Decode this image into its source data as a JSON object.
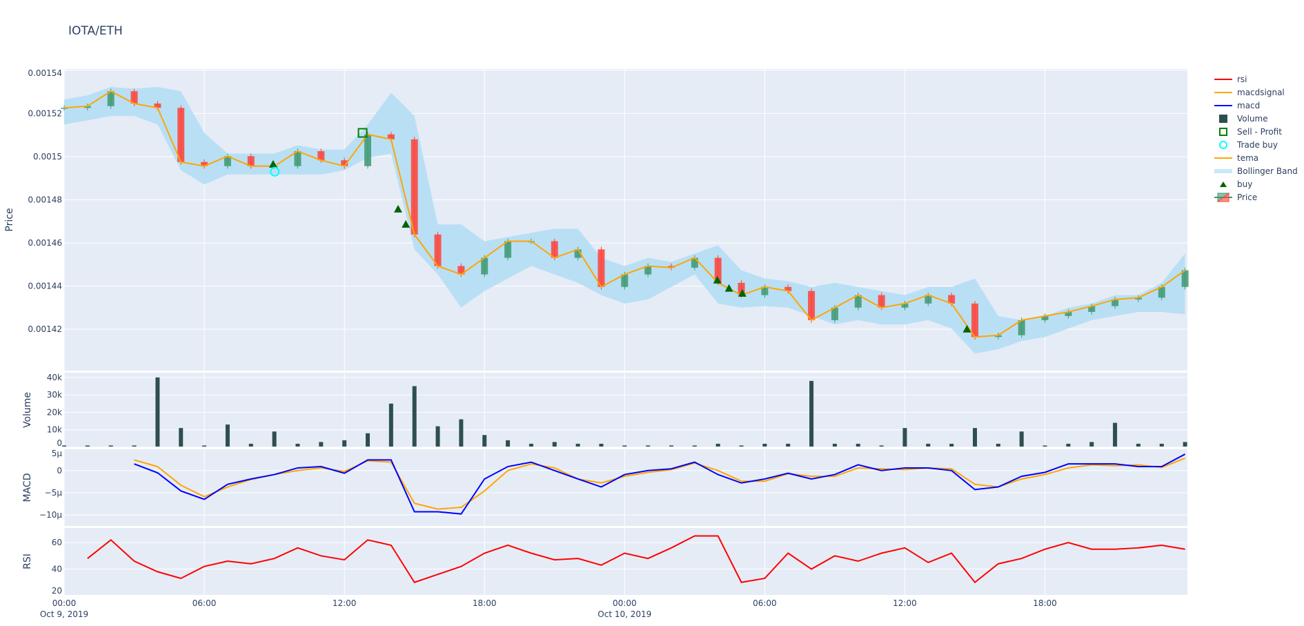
{
  "chart_data": {
    "type": "candlestick",
    "title": "IOTA/ETH",
    "time_unit_note_hidden": null,
    "x_hours_from_start": [
      0,
      1,
      2,
      3,
      4,
      5,
      6,
      7,
      8,
      9,
      10,
      11,
      12,
      13,
      14,
      15,
      16,
      17,
      18,
      19,
      20,
      21,
      22,
      23,
      24,
      25,
      26,
      27,
      28,
      29,
      30,
      31,
      32,
      33,
      34,
      35,
      36,
      37,
      38,
      39,
      40,
      41,
      42,
      43,
      44,
      45,
      46,
      47,
      48
    ],
    "x_start": "Oct 9, 2019 00:00",
    "xaxis": {
      "ticks": [
        {
          "h": 0,
          "label": "00:00",
          "sub": "Oct 9, 2019"
        },
        {
          "h": 6,
          "label": "06:00",
          "sub": ""
        },
        {
          "h": 12,
          "label": "12:00",
          "sub": ""
        },
        {
          "h": 18,
          "label": "18:00",
          "sub": ""
        },
        {
          "h": 24,
          "label": "00:00",
          "sub": "Oct 10, 2019"
        },
        {
          "h": 30,
          "label": "06:00",
          "sub": ""
        },
        {
          "h": 36,
          "label": "12:00",
          "sub": ""
        },
        {
          "h": 42,
          "label": "18:00",
          "sub": ""
        }
      ],
      "range_hours": [
        0,
        48.1
      ]
    },
    "price_panel": {
      "ylabel": "Price",
      "ylim": [
        0.0014008,
        0.0015406
      ],
      "ticks": [
        {
          "v": 0.00154,
          "label": "0.00154"
        },
        {
          "v": 0.00152,
          "label": "0.00152"
        },
        {
          "v": 0.0015,
          "label": "0.0015"
        },
        {
          "v": 0.00148,
          "label": "0.00148"
        },
        {
          "v": 0.00146,
          "label": "0.00146"
        },
        {
          "v": 0.00144,
          "label": "0.00144"
        },
        {
          "v": 0.00142,
          "label": "0.00142"
        }
      ],
      "close": [
        0.0015226,
        0.0015234,
        0.0015303,
        0.0015246,
        0.0015226,
        0.0014975,
        0.0014956,
        0.0015002,
        0.0014956,
        0.0014956,
        0.0015025,
        0.0014983,
        0.0014956,
        0.0015103,
        0.001508,
        0.0014639,
        0.0014493,
        0.0014454,
        0.0014531,
        0.0014608,
        0.0014608,
        0.0014531,
        0.001457,
        0.0014396,
        0.0014454,
        0.0014493,
        0.0014485,
        0.0014531,
        0.0014415,
        0.0014358,
        0.0014396,
        0.0014377,
        0.0014242,
        0.00143,
        0.0014358,
        0.00143,
        0.0014319,
        0.0014358,
        0.0014319,
        0.0014164,
        0.0014172,
        0.0014242,
        0.0014261,
        0.001428,
        0.0014307,
        0.0014338,
        0.0014346,
        0.0014396,
        0.0014473
      ],
      "tema": [
        0.0015226,
        0.0015234,
        0.0015303,
        0.0015246,
        0.0015226,
        0.0014975,
        0.0014956,
        0.0015002,
        0.0014956,
        0.0014956,
        0.0015025,
        0.0014983,
        0.0014956,
        0.0015103,
        0.001508,
        0.0014639,
        0.0014493,
        0.0014454,
        0.0014531,
        0.0014608,
        0.0014608,
        0.0014531,
        0.001457,
        0.0014396,
        0.0014454,
        0.0014493,
        0.0014485,
        0.0014531,
        0.0014415,
        0.0014358,
        0.0014396,
        0.0014377,
        0.0014242,
        0.00143,
        0.0014358,
        0.00143,
        0.0014319,
        0.0014358,
        0.0014319,
        0.0014164,
        0.0014172,
        0.0014242,
        0.0014261,
        0.001428,
        0.0014307,
        0.0014338,
        0.0014346,
        0.0014396,
        0.0014473
      ],
      "bb_upper": [
        0.0015265,
        0.0015284,
        0.0015323,
        0.0015315,
        0.0015323,
        0.0015303,
        0.001511,
        0.0015014,
        0.0015014,
        0.0015014,
        0.0015053,
        0.0015033,
        0.0015033,
        0.0015149,
        0.0015296,
        0.0015188,
        0.0014686,
        0.0014686,
        0.0014608,
        0.0014628,
        0.0014647,
        0.0014666,
        0.0014666,
        0.0014531,
        0.0014493,
        0.0014531,
        0.0014512,
        0.0014551,
        0.0014589,
        0.0014473,
        0.0014435,
        0.0014423,
        0.0014396,
        0.0014415,
        0.0014396,
        0.0014377,
        0.0014358,
        0.0014396,
        0.0014396,
        0.0014435,
        0.0014261,
        0.0014242,
        0.0014261,
        0.00143,
        0.0014319,
        0.0014358,
        0.0014358,
        0.0014415,
        0.0014551
      ],
      "bb_lower": [
        0.0015149,
        0.0015168,
        0.0015188,
        0.0015188,
        0.0015149,
        0.0014937,
        0.0014871,
        0.0014917,
        0.0014917,
        0.0014917,
        0.0014917,
        0.0014917,
        0.0014937,
        0.0014995,
        0.0015014,
        0.001457,
        0.0014454,
        0.00143,
        0.0014377,
        0.0014435,
        0.0014493,
        0.0014454,
        0.0014415,
        0.0014358,
        0.0014319,
        0.0014338,
        0.0014396,
        0.0014454,
        0.0014319,
        0.00143,
        0.0014307,
        0.00143,
        0.0014261,
        0.0014222,
        0.0014242,
        0.0014222,
        0.0014222,
        0.0014242,
        0.0014203,
        0.0014087,
        0.0014107,
        0.0014145,
        0.0014164,
        0.0014203,
        0.0014242,
        0.0014261,
        0.001428,
        0.001428,
        0.0014269
      ],
      "buy_signals": [
        {
          "h": 8.95,
          "price": 0.0014952
        },
        {
          "h": 14.3,
          "price": 0.0014744
        },
        {
          "h": 14.63,
          "price": 0.0014674
        },
        {
          "h": 27.97,
          "price": 0.0014415
        },
        {
          "h": 28.47,
          "price": 0.0014377
        },
        {
          "h": 29.04,
          "price": 0.0014354
        },
        {
          "h": 38.66,
          "price": 0.0014188
        }
      ],
      "trade_buys": [
        {
          "h": 9.02,
          "price": 0.001493
        }
      ],
      "sell_profit": [
        {
          "h": 12.78,
          "price": 0.001511
        }
      ]
    },
    "volume_panel": {
      "ylabel": "Volume",
      "ylim": [
        0,
        42700
      ],
      "ticks": [
        {
          "v": 0,
          "label": "0"
        },
        {
          "v": 10000,
          "label": "10k"
        },
        {
          "v": 20000,
          "label": "20k"
        },
        {
          "v": 30000,
          "label": "30k"
        },
        {
          "v": 40000,
          "label": "40k"
        }
      ],
      "values": [
        1000,
        1000,
        1000,
        1000,
        40000,
        11000,
        1000,
        13000,
        2000,
        9000,
        2000,
        3000,
        4000,
        8000,
        25000,
        35000,
        12000,
        16000,
        7000,
        4000,
        2000,
        3000,
        2000,
        2000,
        1000,
        1000,
        1000,
        1000,
        2000,
        1000,
        2000,
        2000,
        38000,
        2000,
        2000,
        1000,
        11000,
        2000,
        2000,
        11000,
        2000,
        9000,
        1000,
        2000,
        3000,
        14000,
        2000,
        2000,
        3000
      ]
    },
    "macd_panel": {
      "ylabel": "MACD",
      "ylim": [
        -1.25e-05,
        4.8e-06
      ],
      "ticks": [
        {
          "v": 5e-06,
          "label": "5µ"
        },
        {
          "v": 0,
          "label": "0"
        },
        {
          "v": -5e-06,
          "label": "−5µ"
        },
        {
          "v": -1e-05,
          "label": "−10µ"
        }
      ],
      "macd": [
        null,
        null,
        null,
        1.5e-06,
        -5e-07,
        -4.6e-06,
        -6.5e-06,
        -3.1e-06,
        -1.9e-06,
        -9e-07,
        6e-07,
        9e-07,
        -6e-07,
        2.4e-06,
        2.4e-06,
        -9.3e-06,
        -9.3e-06,
        -9.8e-06,
        -1.9e-06,
        9e-07,
        1.9e-06,
        0,
        -1.9e-06,
        -3.7e-06,
        -9e-07,
        0,
        4e-07,
        1.9e-06,
        -9e-07,
        -2.8e-06,
        -1.9e-06,
        -6e-07,
        -1.9e-06,
        -9e-07,
        1.3e-06,
        0,
        6e-07,
        6e-07,
        0,
        -4.3e-06,
        -3.7e-06,
        -1.3e-06,
        -4e-07,
        1.5e-06,
        1.5e-06,
        1.5e-06,
        9e-07,
        9e-07,
        3.7e-06
      ],
      "macdsignal": [
        null,
        null,
        null,
        2.4e-06,
        9e-07,
        -3.3e-06,
        -5.9e-06,
        -3.7e-06,
        -2e-06,
        -9e-07,
        0,
        6e-07,
        -2e-07,
        2.2e-06,
        1.9e-06,
        -7.4e-06,
        -8.7e-06,
        -8.3e-06,
        -4.6e-06,
        0,
        1.5e-06,
        6e-07,
        -1.9e-06,
        -2.8e-06,
        -1.3e-06,
        -4e-07,
        2e-07,
        1.7e-06,
        0,
        -2.4e-06,
        -2.4e-06,
        -7e-07,
        -1.3e-06,
        -1.3e-06,
        6e-07,
        4e-07,
        2e-07,
        6e-07,
        4e-07,
        -3.1e-06,
        -3.7e-06,
        -1.9e-06,
        -9e-07,
        6e-07,
        1.3e-06,
        1.1e-06,
        1.3e-06,
        7e-07,
        2.8e-06
      ]
    },
    "rsi_panel": {
      "ylabel": "RSI",
      "ylim": [
        20.5,
        71
      ],
      "ticks": [
        {
          "v": 20,
          "label": "20"
        },
        {
          "v": 40,
          "label": "40"
        },
        {
          "v": 60,
          "label": "60"
        }
      ],
      "rsi": [
        null,
        48,
        62,
        46,
        38,
        33,
        42,
        46,
        44,
        48,
        56,
        50,
        47,
        62,
        58,
        30,
        36,
        42,
        52,
        58,
        52,
        47,
        48,
        43,
        52,
        48,
        56,
        65,
        65,
        30,
        33,
        52,
        40,
        50,
        46,
        52,
        56,
        45,
        52,
        30,
        44,
        48,
        55,
        60,
        55,
        55,
        56,
        58,
        55
      ]
    },
    "legend": [
      {
        "name": "rsi",
        "symbol": "line",
        "color": "#ff0000"
      },
      {
        "name": "macdsignal",
        "symbol": "line",
        "color": "#ffa500"
      },
      {
        "name": "macd",
        "symbol": "line",
        "color": "#0000ff"
      },
      {
        "name": "Volume",
        "symbol": "square",
        "color": "#2f4f4f"
      },
      {
        "name": "Sell - Profit",
        "symbol": "square-open",
        "color": "#008000"
      },
      {
        "name": "Trade buy",
        "symbol": "circle-open",
        "color": "#00ffff"
      },
      {
        "name": "tema",
        "symbol": "line",
        "color": "#ffa500"
      },
      {
        "name": "Bollinger Band",
        "symbol": "band",
        "color": "#c6e9fb"
      },
      {
        "name": "buy",
        "symbol": "triangle-up",
        "color": "#006400"
      },
      {
        "name": "Price",
        "symbol": "candle",
        "color": "#3d9970"
      }
    ],
    "colors": {
      "increasing": "#3d9970",
      "decreasing": "#ff4136",
      "bb_fill": "#b9dff5",
      "plot_bg": "#e5ecf6",
      "grid": "#ffffff",
      "volume": "#2f4f4f"
    },
    "legend_placement": "right",
    "grid": true
  }
}
